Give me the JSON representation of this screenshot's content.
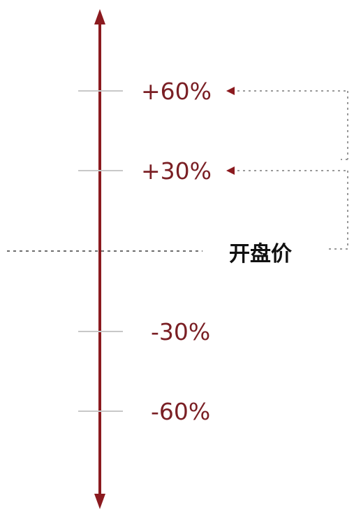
{
  "diagram": {
    "base_label": "开盘价",
    "levels": [
      {
        "label": "+60%",
        "value": 60,
        "pointer": true
      },
      {
        "label": "+30%",
        "value": 30,
        "pointer": true
      },
      {
        "label": "-30%",
        "value": -30,
        "pointer": false
      },
      {
        "label": "-60%",
        "value": -60,
        "pointer": false
      }
    ],
    "colors": {
      "axis": "#8b1a1f",
      "tick": "#c8c8c8",
      "label": "#7a1f24",
      "pointer": "#8b1a1f",
      "dotted": "#9a9a9a",
      "base_label": "#111111"
    }
  }
}
